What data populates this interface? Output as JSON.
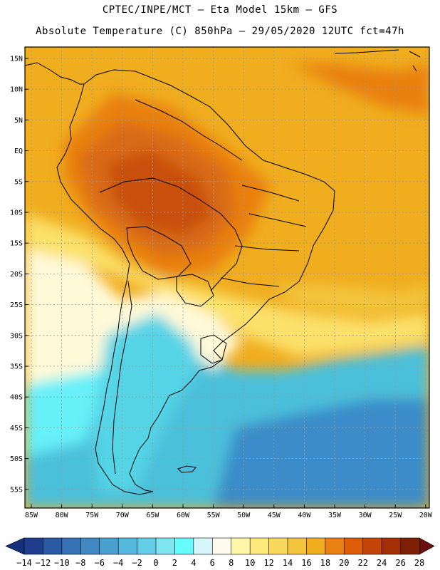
{
  "title_line1": "CPTEC/INPE/MCT –  Eta Model 15km – GFS",
  "title_line2": "Absolute Temperature (C) 850hPa – 29/05/2020 12UTC fct=47h",
  "lat_labels": [
    "15N",
    "10N",
    "5N",
    "EQ",
    "5S",
    "10S",
    "15S",
    "20S",
    "25S",
    "30S",
    "35S",
    "40S",
    "45S",
    "50S",
    "55S"
  ],
  "lon_labels": [
    "85W",
    "80W",
    "75W",
    "70W",
    "65W",
    "60W",
    "55W",
    "50W",
    "45W",
    "40W",
    "35W",
    "30W",
    "25W",
    "20W"
  ],
  "colorbar": {
    "labels": [
      "-14",
      "-12",
      "-10",
      "-8",
      "-6",
      "-4",
      "-2",
      "0",
      "2",
      "4",
      "6",
      "8",
      "10",
      "12",
      "14",
      "16",
      "18",
      "20",
      "22",
      "24",
      "26",
      "28"
    ],
    "colors": [
      "#1f3d8c",
      "#2a5aa3",
      "#3571b3",
      "#3f88c2",
      "#4aa0cf",
      "#55b8dc",
      "#63cde6",
      "#7fe6f0",
      "#66fbff",
      "#d7f6fb",
      "#fffaee",
      "#fff7a8",
      "#fde97c",
      "#f8d85a",
      "#f3c53d",
      "#f0ad1e",
      "#e9800f",
      "#dd5c0a",
      "#c44408",
      "#a22f06",
      "#7c2104"
    ],
    "extend_low": "#13307a",
    "extend_high": "#6a1010"
  },
  "field_colors": {
    "ocean_cold": "#4cc0da",
    "ocean_deep": "#3a8cc8",
    "cold_land": "#55d4e6",
    "cyan": "#66f0f8",
    "pale": "#fff9d8",
    "yellow": "#fbe16a",
    "orange_light": "#f3c53d",
    "orange": "#f0ad1e",
    "orange_dark": "#e9800f",
    "red": "#d86a12",
    "red_dark": "#c94f0b"
  }
}
